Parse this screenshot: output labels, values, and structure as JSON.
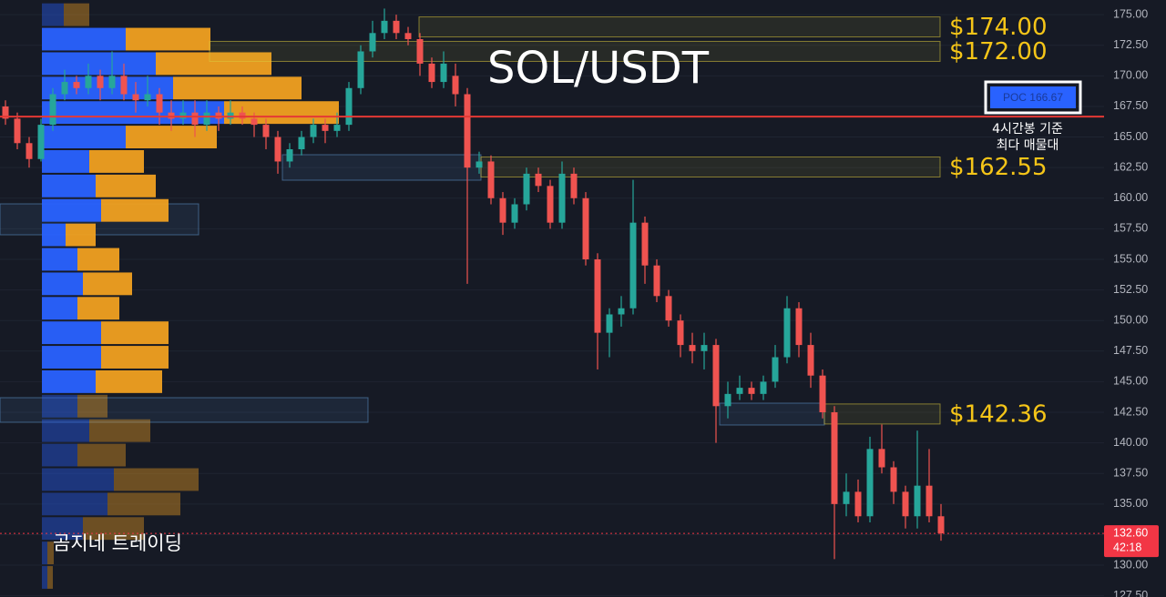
{
  "chart_data": {
    "type": "candlestick",
    "title": "SOL/USDT",
    "watermark": "곰지네 트레이딩",
    "ylim": [
      127.4,
      176.2
    ],
    "yticks": [
      {
        "value": 127.5,
        "label": "127.50"
      },
      {
        "value": 130,
        "label": "130.00"
      },
      {
        "value": 132.5,
        "label": "132.50"
      },
      {
        "value": 135,
        "label": "135.00"
      },
      {
        "value": 137.5,
        "label": "137.50"
      },
      {
        "value": 140,
        "label": "140.00"
      },
      {
        "value": 142.5,
        "label": "142.50"
      },
      {
        "value": 145,
        "label": "145.00"
      },
      {
        "value": 147.5,
        "label": "147.50"
      },
      {
        "value": 150,
        "label": "150.00"
      },
      {
        "value": 152.5,
        "label": "152.50"
      },
      {
        "value": 155,
        "label": "155.00"
      },
      {
        "value": 157.5,
        "label": "157.50"
      },
      {
        "value": 160,
        "label": "160.00"
      },
      {
        "value": 162.5,
        "label": "162.50"
      },
      {
        "value": 165,
        "label": "165.00"
      },
      {
        "value": 167.5,
        "label": "167.50"
      },
      {
        "value": 170,
        "label": "170.00"
      },
      {
        "value": 172.5,
        "label": "172.50"
      },
      {
        "value": 175,
        "label": "175.00"
      }
    ],
    "grid": true,
    "up_color": "#26a69a",
    "down_color": "#ef5350",
    "ohlc": [
      [
        167.5,
        168,
        166,
        166.5
      ],
      [
        166.5,
        167,
        164,
        164.5
      ],
      [
        164.5,
        165,
        162.5,
        163.2
      ],
      [
        163.2,
        166.5,
        163,
        166
      ],
      [
        166,
        169,
        165.5,
        168.5
      ],
      [
        168.5,
        170.5,
        168,
        169.5
      ],
      [
        169.5,
        170,
        168.5,
        169
      ],
      [
        169,
        171,
        168.5,
        170
      ],
      [
        170,
        170.5,
        168,
        169
      ],
      [
        169,
        172,
        168.5,
        170
      ],
      [
        170,
        171,
        168,
        168.5
      ],
      [
        168.5,
        169.5,
        167,
        168
      ],
      [
        168,
        170,
        167.5,
        168.5
      ],
      [
        168.5,
        169,
        166,
        167
      ],
      [
        167,
        168,
        165.5,
        166.5
      ],
      [
        166.5,
        168,
        166,
        167
      ],
      [
        167,
        168,
        165,
        166
      ],
      [
        166,
        168,
        165.5,
        167
      ],
      [
        167,
        167.5,
        165.5,
        166.5
      ],
      [
        166.5,
        168,
        166,
        167
      ],
      [
        167,
        167.5,
        166,
        166.5
      ],
      [
        166.5,
        167,
        165,
        166
      ],
      [
        166,
        166.5,
        164,
        165
      ],
      [
        165,
        165.5,
        162,
        163
      ],
      [
        163,
        164.5,
        162.5,
        164
      ],
      [
        164,
        165.5,
        163.5,
        165
      ],
      [
        165,
        166.5,
        164.5,
        166
      ],
      [
        166,
        166.5,
        164.5,
        165.5
      ],
      [
        165.5,
        167,
        165,
        166
      ],
      [
        166,
        169.5,
        165.5,
        169
      ],
      [
        169,
        172.5,
        168.5,
        172
      ],
      [
        172,
        174.5,
        171.5,
        173.5
      ],
      [
        173.5,
        175.5,
        173,
        174.5
      ],
      [
        174.5,
        175,
        173,
        173.5
      ],
      [
        173.5,
        174,
        172.5,
        173
      ],
      [
        173,
        173.5,
        170,
        171
      ],
      [
        171,
        171.5,
        169,
        169.5
      ],
      [
        169.5,
        172,
        169,
        171
      ],
      [
        170,
        171,
        167.5,
        168.5
      ],
      [
        168.5,
        169,
        153,
        162.5
      ],
      [
        162.5,
        163.8,
        162,
        163
      ],
      [
        163,
        163.5,
        159.5,
        160
      ],
      [
        160,
        160.5,
        157,
        158
      ],
      [
        158,
        160,
        157.5,
        159.5
      ],
      [
        159.5,
        162.5,
        159,
        162
      ],
      [
        162,
        162.5,
        160.5,
        161
      ],
      [
        161,
        161.5,
        157.5,
        158
      ],
      [
        158,
        163,
        157.5,
        162
      ],
      [
        162,
        162.5,
        159.5,
        160
      ],
      [
        160,
        160.5,
        154.5,
        155
      ],
      [
        155,
        155.5,
        146,
        149
      ],
      [
        149,
        151,
        147,
        150.5
      ],
      [
        150.5,
        152,
        149.5,
        151
      ],
      [
        151,
        161.5,
        150.5,
        158
      ],
      [
        158,
        158.5,
        153,
        154.5
      ],
      [
        154.5,
        155,
        151.5,
        152
      ],
      [
        152,
        152.5,
        149.5,
        150
      ],
      [
        150,
        150.5,
        147,
        148
      ],
      [
        148,
        149,
        146.5,
        147.5
      ],
      [
        147.5,
        149,
        146,
        148
      ],
      [
        148,
        148.5,
        140,
        143
      ],
      [
        143,
        145,
        142,
        144
      ],
      [
        144,
        145.5,
        143.5,
        144.5
      ],
      [
        144.5,
        145,
        143.5,
        144
      ],
      [
        144,
        145.5,
        143.5,
        145
      ],
      [
        145,
        148,
        144.5,
        147
      ],
      [
        147,
        152,
        146.5,
        151
      ],
      [
        151,
        151.5,
        147,
        148
      ],
      [
        148,
        149,
        144.5,
        145.5
      ],
      [
        145.5,
        146,
        142,
        142.5
      ],
      [
        142.5,
        143,
        130.5,
        135
      ],
      [
        135,
        137.5,
        134,
        136
      ],
      [
        136,
        137,
        133.5,
        134
      ],
      [
        134,
        140.5,
        133.5,
        139.5
      ],
      [
        139.5,
        141.5,
        137.5,
        138
      ],
      [
        138,
        138.5,
        135,
        136
      ],
      [
        136,
        136.5,
        133,
        134
      ],
      [
        134,
        141,
        133,
        136.5
      ],
      [
        136.5,
        139.5,
        133.5,
        134
      ],
      [
        134,
        135,
        132,
        132.6
      ]
    ],
    "volume_profile": {
      "bins": [
        128,
        130,
        132,
        134,
        136,
        138,
        140,
        142,
        144,
        146,
        148,
        150,
        152,
        154,
        156,
        158,
        160,
        162,
        164,
        166,
        168,
        170,
        172,
        174,
        176
      ],
      "buy": [
        6,
        6,
        45,
        72,
        79,
        39,
        52,
        39,
        59,
        65,
        65,
        39,
        45,
        39,
        26,
        65,
        59,
        52,
        92,
        200,
        144,
        125,
        92,
        24
      ],
      "sell": [
        6,
        7,
        67,
        80,
        93,
        53,
        67,
        33,
        73,
        74,
        74,
        46,
        54,
        46,
        33,
        74,
        66,
        60,
        100,
        126,
        141,
        127,
        93,
        28
      ],
      "buy_color": "#2962ff",
      "sell_color": "#f0a020",
      "value_area": [
        144,
        174
      ]
    },
    "levels": [
      {
        "value": 174,
        "label": "$174.00"
      },
      {
        "value": 172,
        "label": "$172.00"
      },
      {
        "value": 162.55,
        "label": "$162.55"
      },
      {
        "value": 142.36,
        "label": "$142.36"
      }
    ],
    "poc": {
      "value": 166.67,
      "label": "POC  166.67",
      "note": [
        "4시간봉 기준",
        "최다 매물대"
      ],
      "color": "#e53935"
    },
    "last_price": {
      "value": 132.6,
      "label": "132.60",
      "countdown": "42:18",
      "color": "#f23645"
    }
  }
}
